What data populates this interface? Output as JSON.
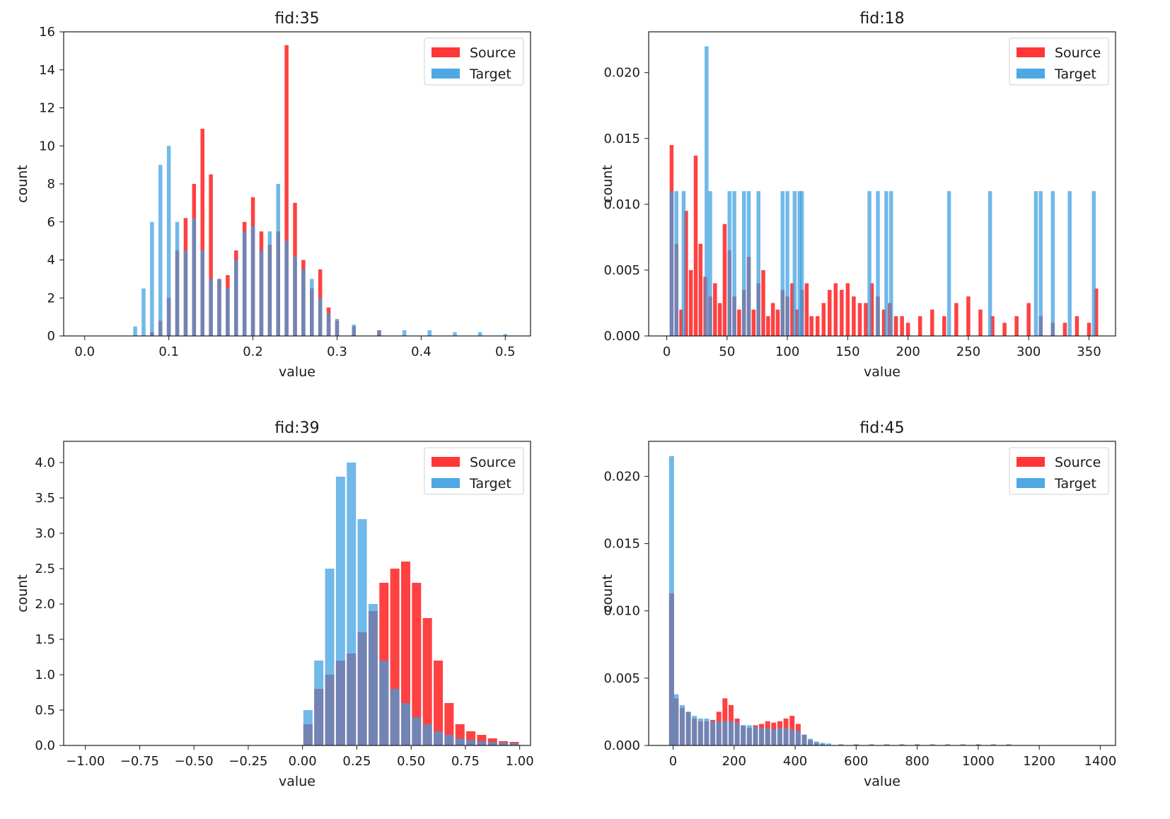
{
  "figure": {
    "legend": {
      "placement": "top-right",
      "entries": [
        {
          "name": "Source",
          "color": "#ff2020"
        },
        {
          "name": "Target",
          "color": "#3a9ee0"
        }
      ]
    }
  },
  "chart_data": [
    {
      "type": "bar",
      "style": "overlapping-histogram",
      "title": "fid:35",
      "xlabel": "value",
      "ylabel": "count",
      "xlim": [
        -0.025,
        0.53
      ],
      "ylim": [
        0,
        16
      ],
      "xticks": [
        0.0,
        0.1,
        0.2,
        0.3,
        0.4,
        0.5
      ],
      "xtick_labels": [
        "0.0",
        "0.1",
        "0.2",
        "0.3",
        "0.4",
        "0.5"
      ],
      "yticks": [
        0,
        2,
        4,
        6,
        8,
        10,
        12,
        14,
        16
      ],
      "ytick_labels": [
        "0",
        "2",
        "4",
        "6",
        "8",
        "10",
        "12",
        "14",
        "16"
      ],
      "legend_placement": "top-right",
      "series": [
        {
          "name": "Source",
          "color": "#ff2020",
          "x": [
            0.08,
            0.09,
            0.1,
            0.11,
            0.12,
            0.13,
            0.14,
            0.15,
            0.16,
            0.17,
            0.18,
            0.19,
            0.2,
            0.21,
            0.22,
            0.23,
            0.24,
            0.25,
            0.26,
            0.27,
            0.28,
            0.29,
            0.3,
            0.32,
            0.35
          ],
          "values": [
            0.2,
            0.8,
            2.0,
            4.5,
            6.2,
            8.0,
            10.9,
            8.5,
            3.0,
            3.2,
            4.5,
            6.0,
            7.3,
            5.5,
            4.8,
            5.5,
            15.3,
            7.0,
            4.0,
            2.5,
            3.5,
            1.5,
            0.8,
            0.5,
            0.3
          ]
        },
        {
          "name": "Target",
          "color": "#3a9ee0",
          "x": [
            0.06,
            0.07,
            0.08,
            0.09,
            0.1,
            0.11,
            0.12,
            0.13,
            0.14,
            0.15,
            0.16,
            0.17,
            0.18,
            0.19,
            0.2,
            0.21,
            0.22,
            0.23,
            0.24,
            0.25,
            0.26,
            0.27,
            0.28,
            0.29,
            0.3,
            0.32,
            0.35,
            0.38,
            0.41,
            0.44,
            0.47,
            0.5
          ],
          "values": [
            0.5,
            2.5,
            6.0,
            9.0,
            10.0,
            6.0,
            4.5,
            6.2,
            4.5,
            3.0,
            3.0,
            2.5,
            4.0,
            5.5,
            5.8,
            4.5,
            5.5,
            8.0,
            5.0,
            4.2,
            3.5,
            3.0,
            2.0,
            1.2,
            0.9,
            0.6,
            0.3,
            0.3,
            0.3,
            0.2,
            0.2,
            0.1
          ]
        }
      ]
    },
    {
      "type": "bar",
      "style": "overlapping-histogram",
      "title": "fid:18",
      "xlabel": "value",
      "ylabel": "count",
      "xlim": [
        -15,
        372
      ],
      "ylim": [
        0,
        0.0231
      ],
      "xticks": [
        0,
        50,
        100,
        150,
        200,
        250,
        300,
        350
      ],
      "xtick_labels": [
        "0",
        "50",
        "100",
        "150",
        "200",
        "250",
        "300",
        "350"
      ],
      "yticks": [
        0.0,
        0.005,
        0.01,
        0.015,
        0.02
      ],
      "ytick_labels": [
        "0.000",
        "0.005",
        "0.010",
        "0.015",
        "0.020"
      ],
      "legend_placement": "top-right",
      "series": [
        {
          "name": "Source",
          "color": "#ff2020",
          "x": [
            4,
            8,
            12,
            16,
            20,
            24,
            28,
            32,
            36,
            40,
            44,
            48,
            52,
            56,
            60,
            64,
            68,
            72,
            76,
            80,
            84,
            88,
            92,
            96,
            100,
            104,
            108,
            112,
            116,
            120,
            125,
            130,
            135,
            140,
            145,
            150,
            155,
            160,
            165,
            170,
            175,
            180,
            185,
            190,
            195,
            200,
            210,
            220,
            230,
            240,
            250,
            260,
            270,
            280,
            290,
            300,
            310,
            320,
            330,
            340,
            350,
            356
          ],
          "values": [
            0.0145,
            0.007,
            0.002,
            0.0095,
            0.005,
            0.0137,
            0.007,
            0.0045,
            0.003,
            0.004,
            0.0025,
            0.0085,
            0.0065,
            0.003,
            0.002,
            0.0035,
            0.006,
            0.002,
            0.004,
            0.005,
            0.0015,
            0.0025,
            0.002,
            0.0035,
            0.003,
            0.004,
            0.002,
            0.0035,
            0.004,
            0.0015,
            0.0015,
            0.0025,
            0.0035,
            0.004,
            0.0035,
            0.004,
            0.003,
            0.0025,
            0.0025,
            0.004,
            0.003,
            0.002,
            0.0025,
            0.0015,
            0.0015,
            0.001,
            0.0015,
            0.002,
            0.0015,
            0.0025,
            0.003,
            0.002,
            0.0015,
            0.001,
            0.0015,
            0.0025,
            0.0015,
            0.001,
            0.001,
            0.0015,
            0.001,
            0.0036
          ]
        },
        {
          "name": "Target",
          "color": "#3a9ee0",
          "x": [
            4,
            8,
            14,
            33,
            36,
            52,
            56,
            64,
            68,
            76,
            96,
            100,
            106,
            110,
            112,
            168,
            175,
            182,
            186,
            234,
            268,
            306,
            310,
            320,
            334,
            354
          ],
          "values": [
            0.011,
            0.011,
            0.011,
            0.022,
            0.011,
            0.011,
            0.011,
            0.011,
            0.011,
            0.011,
            0.011,
            0.011,
            0.011,
            0.011,
            0.011,
            0.011,
            0.011,
            0.011,
            0.011,
            0.011,
            0.011,
            0.011,
            0.011,
            0.011,
            0.011,
            0.011
          ]
        }
      ]
    },
    {
      "type": "bar",
      "style": "overlapping-histogram",
      "title": "fid:39",
      "xlabel": "value",
      "ylabel": "count",
      "xlim": [
        -1.1,
        1.05
      ],
      "ylim": [
        0,
        4.3
      ],
      "xticks": [
        -1.0,
        -0.75,
        -0.5,
        -0.25,
        0.0,
        0.25,
        0.5,
        0.75,
        1.0
      ],
      "xtick_labels": [
        "−1.00",
        "−0.75",
        "−0.50",
        "−0.25",
        "0.00",
        "0.25",
        "0.50",
        "0.75",
        "1.00"
      ],
      "yticks": [
        0,
        0.5,
        1.0,
        1.5,
        2.0,
        2.5,
        3.0,
        3.5,
        4.0
      ],
      "ytick_labels": [
        "0.0",
        "0.5",
        "1.0",
        "1.5",
        "2.0",
        "2.5",
        "3.0",
        "3.5",
        "4.0"
      ],
      "legend_placement": "top-right",
      "series": [
        {
          "name": "Source",
          "color": "#ff2020",
          "x": [
            0.025,
            0.075,
            0.125,
            0.175,
            0.225,
            0.275,
            0.325,
            0.375,
            0.425,
            0.475,
            0.525,
            0.575,
            0.625,
            0.675,
            0.725,
            0.775,
            0.825,
            0.875,
            0.925,
            0.975
          ],
          "values": [
            0.3,
            0.8,
            1.0,
            1.2,
            1.3,
            1.6,
            1.9,
            2.3,
            2.5,
            2.6,
            2.3,
            1.8,
            1.2,
            0.6,
            0.3,
            0.2,
            0.15,
            0.1,
            0.06,
            0.05
          ]
        },
        {
          "name": "Target",
          "color": "#3a9ee0",
          "x": [
            0.025,
            0.075,
            0.125,
            0.175,
            0.225,
            0.275,
            0.325,
            0.375,
            0.425,
            0.475,
            0.525,
            0.575,
            0.625,
            0.675,
            0.725,
            0.775,
            0.825,
            0.875,
            0.925,
            0.975
          ],
          "values": [
            0.5,
            1.2,
            2.5,
            3.8,
            4.0,
            3.2,
            2.0,
            1.2,
            0.8,
            0.6,
            0.4,
            0.3,
            0.2,
            0.15,
            0.1,
            0.08,
            0.06,
            0.05,
            0.04,
            0.03
          ]
        }
      ]
    },
    {
      "type": "bar",
      "style": "overlapping-histogram",
      "title": "fid:45",
      "xlabel": "value",
      "ylabel": "count",
      "xlim": [
        -80,
        1450
      ],
      "ylim": [
        0,
        0.0226
      ],
      "xticks": [
        0,
        200,
        400,
        600,
        800,
        1000,
        1200,
        1400
      ],
      "xtick_labels": [
        "0",
        "200",
        "400",
        "600",
        "800",
        "1000",
        "1200",
        "1400"
      ],
      "yticks": [
        0.0,
        0.005,
        0.01,
        0.015,
        0.02
      ],
      "ytick_labels": [
        "0.000",
        "0.005",
        "0.010",
        "0.015",
        "0.020"
      ],
      "legend_placement": "top-right",
      "series": [
        {
          "name": "Source",
          "color": "#ff2020",
          "x": [
            -5,
            10,
            30,
            50,
            70,
            90,
            110,
            130,
            150,
            170,
            190,
            210,
            230,
            250,
            270,
            290,
            310,
            330,
            350,
            370,
            390,
            410,
            430,
            450,
            470,
            490
          ],
          "values": [
            0.0113,
            0.0035,
            0.0028,
            0.0025,
            0.002,
            0.0018,
            0.0018,
            0.0019,
            0.0025,
            0.0035,
            0.003,
            0.002,
            0.0015,
            0.0013,
            0.0015,
            0.0016,
            0.0018,
            0.0017,
            0.0018,
            0.002,
            0.0022,
            0.0016,
            0.0008,
            0.0004,
            0.0002,
            0.0001
          ]
        },
        {
          "name": "Target",
          "color": "#3a9ee0",
          "x": [
            -5,
            10,
            30,
            50,
            70,
            90,
            110,
            130,
            150,
            170,
            190,
            210,
            230,
            250,
            270,
            290,
            310,
            330,
            350,
            370,
            390,
            410,
            430,
            450,
            470,
            490,
            510,
            550,
            600,
            650,
            700,
            750,
            800,
            850,
            900,
            950,
            1000,
            1050,
            1100
          ],
          "values": [
            0.0215,
            0.0038,
            0.003,
            0.0025,
            0.0022,
            0.002,
            0.002,
            0.0018,
            0.0018,
            0.0018,
            0.0018,
            0.0017,
            0.0015,
            0.0015,
            0.0014,
            0.0013,
            0.0013,
            0.0012,
            0.0013,
            0.0013,
            0.0012,
            0.0011,
            0.0008,
            0.0005,
            0.0003,
            0.0002,
            0.00015,
            0.0001,
            0.0001,
            0.0001,
            0.0001,
            0.0001,
            0.0001,
            0.0001,
            0.0001,
            0.0001,
            0.0001,
            0.0001,
            0.0001
          ]
        }
      ]
    }
  ]
}
